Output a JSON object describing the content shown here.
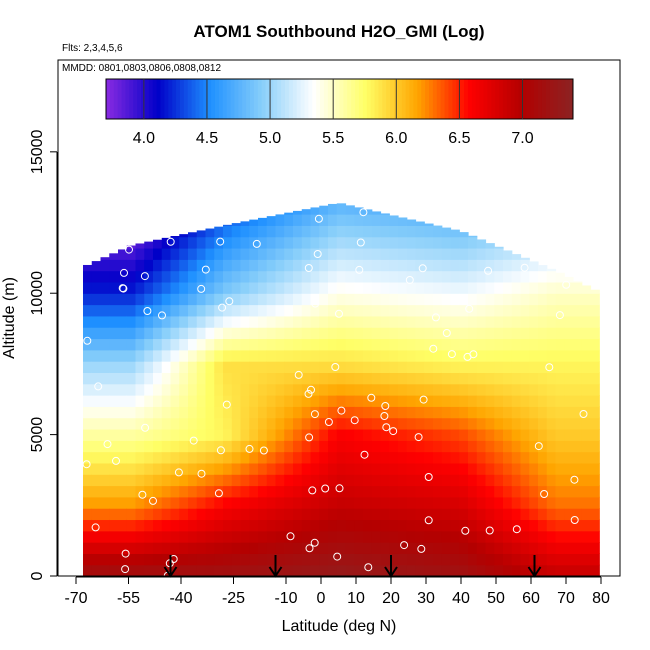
{
  "chart_data": {
    "type": "heatmap",
    "title": "ATOM1 Southbound H2O_GMI (Log)",
    "flights_label": "Flts: 2,3,4,5,6",
    "dates_label": "MMDD: 0801,0803,0806,0808,0812",
    "xlabel": "Latitude (deg N)",
    "ylabel": "Altitude (m)",
    "xlim": [
      -70,
      80
    ],
    "ylim": [
      0,
      18000
    ],
    "x_tick_labels": [
      "-70",
      "-55",
      "-40",
      "-25",
      "-10",
      "0",
      "10",
      "20",
      "30",
      "40",
      "50",
      "60",
      "70",
      "80"
    ],
    "x_tick_values": [
      -70,
      -55,
      -40,
      -25,
      -10,
      0,
      10,
      20,
      30,
      40,
      50,
      60,
      70,
      80
    ],
    "y_tick_labels": [
      "0",
      "5000",
      "10000",
      "15000"
    ],
    "y_tick_values": [
      0,
      5000,
      10000,
      15000
    ],
    "colorbar": {
      "range": [
        3.7,
        7.4
      ],
      "tick_labels": [
        "4.0",
        "4.5",
        "5.0",
        "5.5",
        "6.0",
        "6.5",
        "7.0"
      ],
      "tick_values": [
        4.0,
        4.5,
        5.0,
        5.5,
        6.0,
        6.5,
        7.0
      ],
      "colors": [
        "#8a2be2",
        "#0000c8",
        "#1e90ff",
        "#87cefa",
        "#ffffff",
        "#ffff66",
        "#ffa500",
        "#ff0000",
        "#b40000",
        "#8b2323"
      ]
    },
    "latitude_bands_log_h2o": [
      {
        "lat_range": [
          -68,
          -40
        ],
        "surface": 7.2,
        "at_2500m": 6.2,
        "at_5000m": 5.6,
        "at_7500m": 5.0,
        "at_10000m": 4.2,
        "top_m": 11700
      },
      {
        "lat_range": [
          -40,
          -15
        ],
        "surface": 7.2,
        "at_2500m": 6.6,
        "at_5000m": 5.8,
        "at_7500m": 5.9,
        "at_10000m": 4.9,
        "top_m": 12400
      },
      {
        "lat_range": [
          -15,
          25
        ],
        "surface": 7.3,
        "at_2500m": 6.9,
        "at_5000m": 6.6,
        "at_7500m": 5.9,
        "at_10000m": 5.4,
        "top_m": 13200
      },
      {
        "lat_range": [
          25,
          55
        ],
        "surface": 7.2,
        "at_2500m": 6.8,
        "at_5000m": 6.4,
        "at_7500m": 5.8,
        "at_10000m": 5.3,
        "top_m": 12200
      },
      {
        "lat_range": [
          55,
          79
        ],
        "surface": 6.9,
        "at_2500m": 6.3,
        "at_5000m": 6.0,
        "at_7500m": 5.8,
        "at_10000m": 5.5,
        "top_m": 10800
      }
    ],
    "profile_arrows_lat": [
      -43,
      -13,
      20,
      61
    ],
    "grid": false,
    "legend": "colorbar top"
  }
}
